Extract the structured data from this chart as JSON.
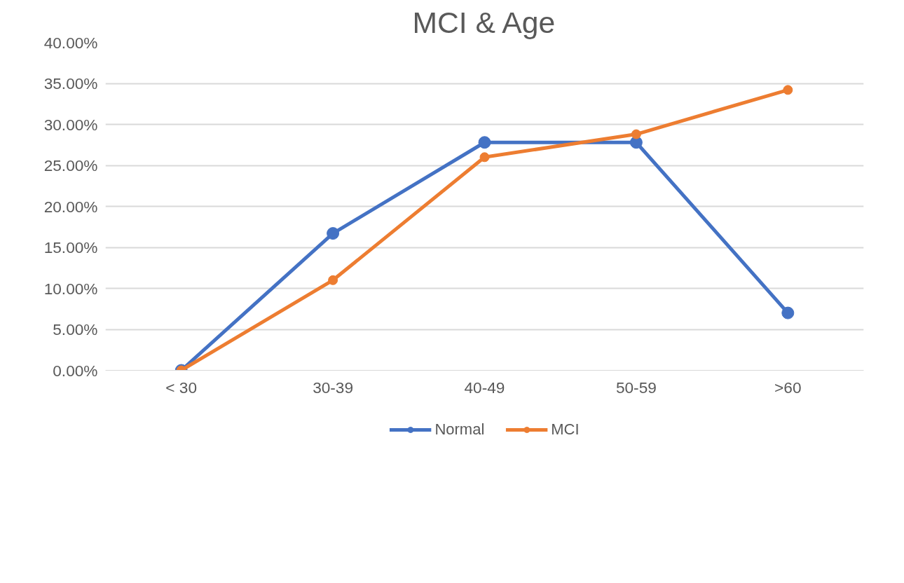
{
  "chart_data": {
    "type": "line",
    "title": "MCI & Age",
    "categories": [
      "< 30",
      "30-39",
      "40-49",
      "50-59",
      ">60"
    ],
    "series": [
      {
        "name": "Normal",
        "color": "#4472c4",
        "values": [
          0,
          16.7,
          27.8,
          27.8,
          7.0
        ]
      },
      {
        "name": "MCI",
        "color": "#ed7d31",
        "values": [
          0,
          11.0,
          26.0,
          28.8,
          34.2
        ]
      }
    ],
    "ylim": [
      0,
      40
    ],
    "yticks": [
      {
        "value": 0,
        "label": "0.00%"
      },
      {
        "value": 5,
        "label": "5.00%"
      },
      {
        "value": 10,
        "label": "10.00%"
      },
      {
        "value": 15,
        "label": "15.00%"
      },
      {
        "value": 20,
        "label": "20.00%"
      },
      {
        "value": 25,
        "label": "25.00%"
      },
      {
        "value": 30,
        "label": "30.00%"
      },
      {
        "value": 35,
        "label": "35.00%"
      },
      {
        "value": 40,
        "label": "40.00%"
      }
    ],
    "grid": "y",
    "legend": "bottom",
    "marker": "circle",
    "line_style": "solid"
  }
}
